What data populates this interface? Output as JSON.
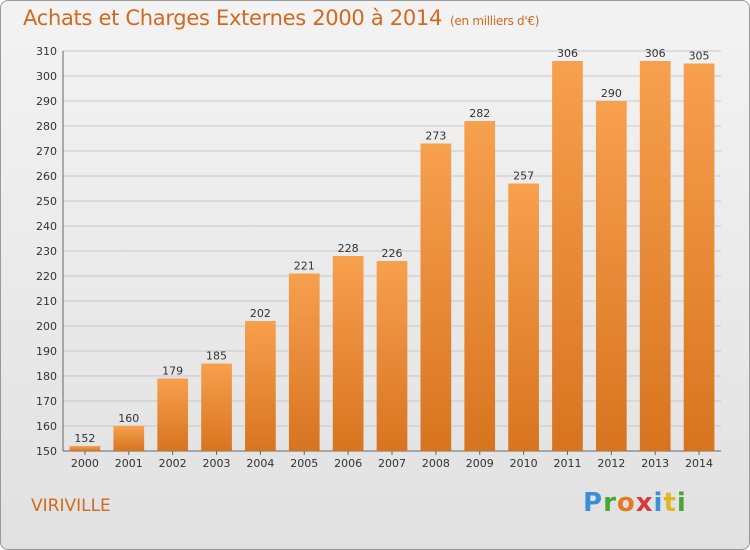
{
  "title": "Achats et Charges Externes 2000 à 2014",
  "subtitle": "(en milliers d'€)",
  "commune": "VIRIVILLE",
  "logo": {
    "letters": [
      "P",
      "r",
      "o",
      "x",
      "i",
      "t",
      "i"
    ],
    "colors": [
      "#3a8fd6",
      "#4aa832",
      "#e07b22",
      "#d63a3a",
      "#3a8fd6",
      "#e0b622",
      "#4aa832"
    ]
  },
  "colors": {
    "bar_top": "#f7a04e",
    "bar_bottom": "#d87420",
    "text_accent": "#d2691e",
    "grid": "#c8c8c8"
  },
  "chart_data": {
    "type": "bar",
    "title": "Achats et Charges Externes 2000 à 2014",
    "subtitle": "(en milliers d'€)",
    "categories": [
      "2000",
      "2001",
      "2002",
      "2003",
      "2004",
      "2005",
      "2006",
      "2007",
      "2008",
      "2009",
      "2010",
      "2011",
      "2012",
      "2013",
      "2014"
    ],
    "values": [
      152,
      160,
      179,
      185,
      202,
      221,
      228,
      226,
      273,
      282,
      257,
      306,
      290,
      306,
      305
    ],
    "ylim": [
      150,
      310
    ],
    "yticks": [
      150,
      160,
      170,
      180,
      190,
      200,
      210,
      220,
      230,
      240,
      250,
      260,
      270,
      280,
      290,
      300,
      310
    ],
    "grid": true,
    "xlabel": "",
    "ylabel": ""
  }
}
